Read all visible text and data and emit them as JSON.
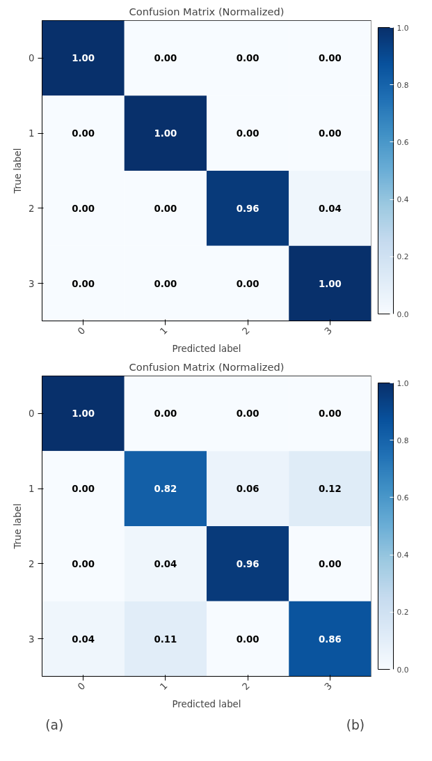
{
  "chart_data": [
    {
      "type": "heatmap",
      "title": "Confusion Matrix (Normalized)",
      "xlabel": "Predicted label",
      "ylabel": "True label",
      "categories": [
        "0",
        "1",
        "2",
        "3"
      ],
      "y_categories": [
        "0",
        "1",
        "2",
        "3"
      ],
      "cells": [
        [
          1.0,
          0.0,
          0.0,
          0.0
        ],
        [
          0.0,
          1.0,
          0.0,
          0.0
        ],
        [
          0.0,
          0.0,
          0.96,
          0.04
        ],
        [
          0.0,
          0.0,
          0.0,
          1.0
        ]
      ],
      "cell_labels": [
        [
          "1.00",
          "0.00",
          "0.00",
          "0.00"
        ],
        [
          "0.00",
          "1.00",
          "0.00",
          "0.00"
        ],
        [
          "0.00",
          "0.00",
          "0.96",
          "0.04"
        ],
        [
          "0.00",
          "0.00",
          "0.00",
          "1.00"
        ]
      ],
      "clim": [
        0,
        1
      ],
      "cticks": [
        {
          "value": 0,
          "label": "0.0"
        },
        {
          "value": 0.2,
          "label": "0.2"
        },
        {
          "value": 0.4,
          "label": "0.4"
        },
        {
          "value": 0.6,
          "label": "0.6"
        },
        {
          "value": 0.8,
          "label": "0.8"
        },
        {
          "value": 1,
          "label": "1.0"
        }
      ],
      "annotations": [
        "(a)"
      ]
    },
    {
      "type": "heatmap",
      "title": "Confusion Matrix (Normalized)",
      "xlabel": "Predicted label",
      "ylabel": "True label",
      "categories": [
        "0",
        "1",
        "2",
        "3"
      ],
      "y_categories": [
        "0",
        "1",
        "2",
        "3"
      ],
      "cells": [
        [
          1.0,
          0.0,
          0.0,
          0.0
        ],
        [
          0.0,
          0.82,
          0.06,
          0.12
        ],
        [
          0.0,
          0.04,
          0.96,
          0.0
        ],
        [
          0.04,
          0.11,
          0.0,
          0.86
        ]
      ],
      "cell_labels": [
        [
          "1.00",
          "0.00",
          "0.00",
          "0.00"
        ],
        [
          "0.00",
          "0.82",
          "0.06",
          "0.12"
        ],
        [
          "0.00",
          "0.04",
          "0.96",
          "0.00"
        ],
        [
          "0.04",
          "0.11",
          "0.00",
          "0.86"
        ]
      ],
      "clim": [
        0,
        1
      ],
      "cticks": [
        {
          "value": 0,
          "label": "0.0"
        },
        {
          "value": 0.2,
          "label": "0.2"
        },
        {
          "value": 0.4,
          "label": "0.4"
        },
        {
          "value": 0.6,
          "label": "0.6"
        },
        {
          "value": 0.8,
          "label": "0.8"
        },
        {
          "value": 1,
          "label": "1.0"
        }
      ],
      "annotations": [
        "(b)"
      ]
    }
  ]
}
